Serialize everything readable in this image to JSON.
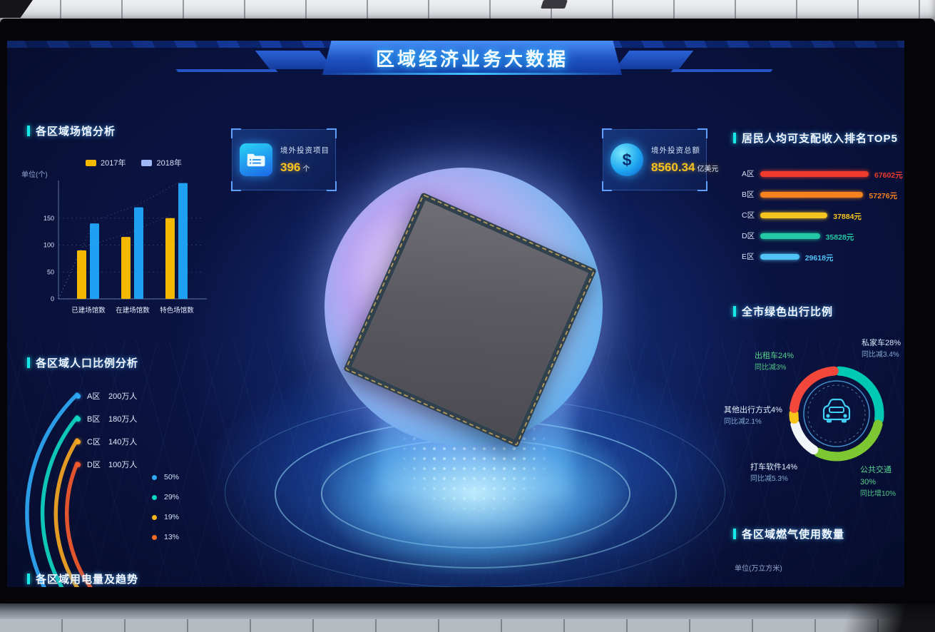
{
  "title": "区域经济业务大数据",
  "panels": {
    "venue": {
      "title": "各区域场馆分析",
      "unit": "单位(个)",
      "legend": [
        {
          "label": "2017年",
          "color": "#f5b800"
        },
        {
          "label": "2018年",
          "color": "#9fb8f5"
        }
      ]
    },
    "projects_card": {
      "label": "境外投资项目",
      "value": "396",
      "unit": "个"
    },
    "amount_card": {
      "label": "境外投资总额",
      "value": "8560.34",
      "unit": "亿美元"
    },
    "income": {
      "title": "居民人均可支配收入排名TOP5",
      "bars": [
        {
          "region": "A区",
          "value": "67602元",
          "pct": 100,
          "color": "#ef3b2d"
        },
        {
          "region": "B区",
          "value": "57276元",
          "pct": 95,
          "color": "#f5821e"
        },
        {
          "region": "C区",
          "value": "37884元",
          "pct": 62,
          "color": "#f5c51f"
        },
        {
          "region": "D区",
          "value": "35828元",
          "pct": 55,
          "color": "#23c9a4"
        },
        {
          "region": "E区",
          "value": "29618元",
          "pct": 36,
          "color": "#4fc3f7"
        }
      ]
    },
    "travel": {
      "title": "全市绿色出行比例",
      "segments": [
        {
          "label": "私家车28%",
          "yoy": "同比减3.4%",
          "pct": 28,
          "color": "#00c9b1",
          "label_color": "#d8e4f5",
          "yoy_color": "#8fb3d8"
        },
        {
          "label": "公共交通30%",
          "yoy": "同比增10%",
          "pct": 30,
          "color": "#7dc832",
          "label_color": "#58d287",
          "yoy_color": "#58d287"
        },
        {
          "label": "打车软件14%",
          "yoy": "同比减5.3%",
          "pct": 14,
          "color": "#f2f5f8",
          "label_color": "#e8f0fa",
          "yoy_color": "#8fb3d8"
        },
        {
          "label": "其他出行方式4%",
          "yoy": "同比减2.1%",
          "pct": 4,
          "color": "#f5c319",
          "label_color": "#e8f0fa",
          "yoy_color": "#8fb3d8"
        },
        {
          "label": "出租车24%",
          "yoy": "同比减3%",
          "pct": 24,
          "color": "#f3473c",
          "label_color": "#58d287",
          "yoy_color": "#58d287"
        }
      ]
    },
    "population": {
      "title": "各区域人口比例分析",
      "items": [
        {
          "region": "A区",
          "value": "200万人",
          "color": "#2fa8f5"
        },
        {
          "region": "B区",
          "value": "180万人",
          "color": "#0fd6c2"
        },
        {
          "region": "C区",
          "value": "140万人",
          "color": "#f5a623"
        },
        {
          "region": "D区",
          "value": "100万人",
          "color": "#f55a2d"
        }
      ],
      "legend": [
        {
          "label": "50%",
          "color": "#2fa8f5"
        },
        {
          "label": "29%",
          "color": "#0fd6c2"
        },
        {
          "label": "19%",
          "color": "#f5b31a"
        },
        {
          "label": "13%",
          "color": "#f56a24"
        }
      ]
    },
    "electricity": {
      "title": "各区域用电量及趋势"
    },
    "gas": {
      "title": "各区域燃气使用数量",
      "unit": "单位(万立方米)"
    }
  },
  "chart_data": [
    {
      "type": "bar",
      "title": "各区域场馆分析",
      "unit": "单位(个)",
      "categories": [
        "已建场馆数",
        "在建场馆数",
        "特色场馆数"
      ],
      "series": [
        {
          "name": "2017年",
          "color": "#f5b800",
          "values": [
            90,
            115,
            150
          ]
        },
        {
          "name": "2018年",
          "color": "#1e9ff2",
          "values": [
            140,
            170,
            215
          ]
        }
      ],
      "yticks": [
        0,
        50,
        100,
        150
      ],
      "ylim": [
        0,
        220
      ]
    },
    {
      "type": "bar",
      "orientation": "horizontal",
      "title": "居民人均可支配收入排名TOP5",
      "categories": [
        "A区",
        "B区",
        "C区",
        "D区",
        "E区"
      ],
      "values": [
        67602,
        57276,
        37884,
        35828,
        29618
      ],
      "unit": "元"
    },
    {
      "type": "pie",
      "title": "全市绿色出行比例",
      "slices": [
        {
          "label": "私家车",
          "pct": 28
        },
        {
          "label": "公共交通",
          "pct": 30
        },
        {
          "label": "打车软件",
          "pct": 14
        },
        {
          "label": "其他出行方式",
          "pct": 4
        },
        {
          "label": "出租车",
          "pct": 24
        }
      ]
    },
    {
      "type": "arc",
      "title": "各区域人口比例分析",
      "categories": [
        "A区",
        "B区",
        "C区",
        "D区"
      ],
      "values": [
        "200万人",
        "180万人",
        "140万人",
        "100万人"
      ],
      "legend": [
        "50%",
        "29%",
        "19%",
        "13%"
      ]
    }
  ]
}
